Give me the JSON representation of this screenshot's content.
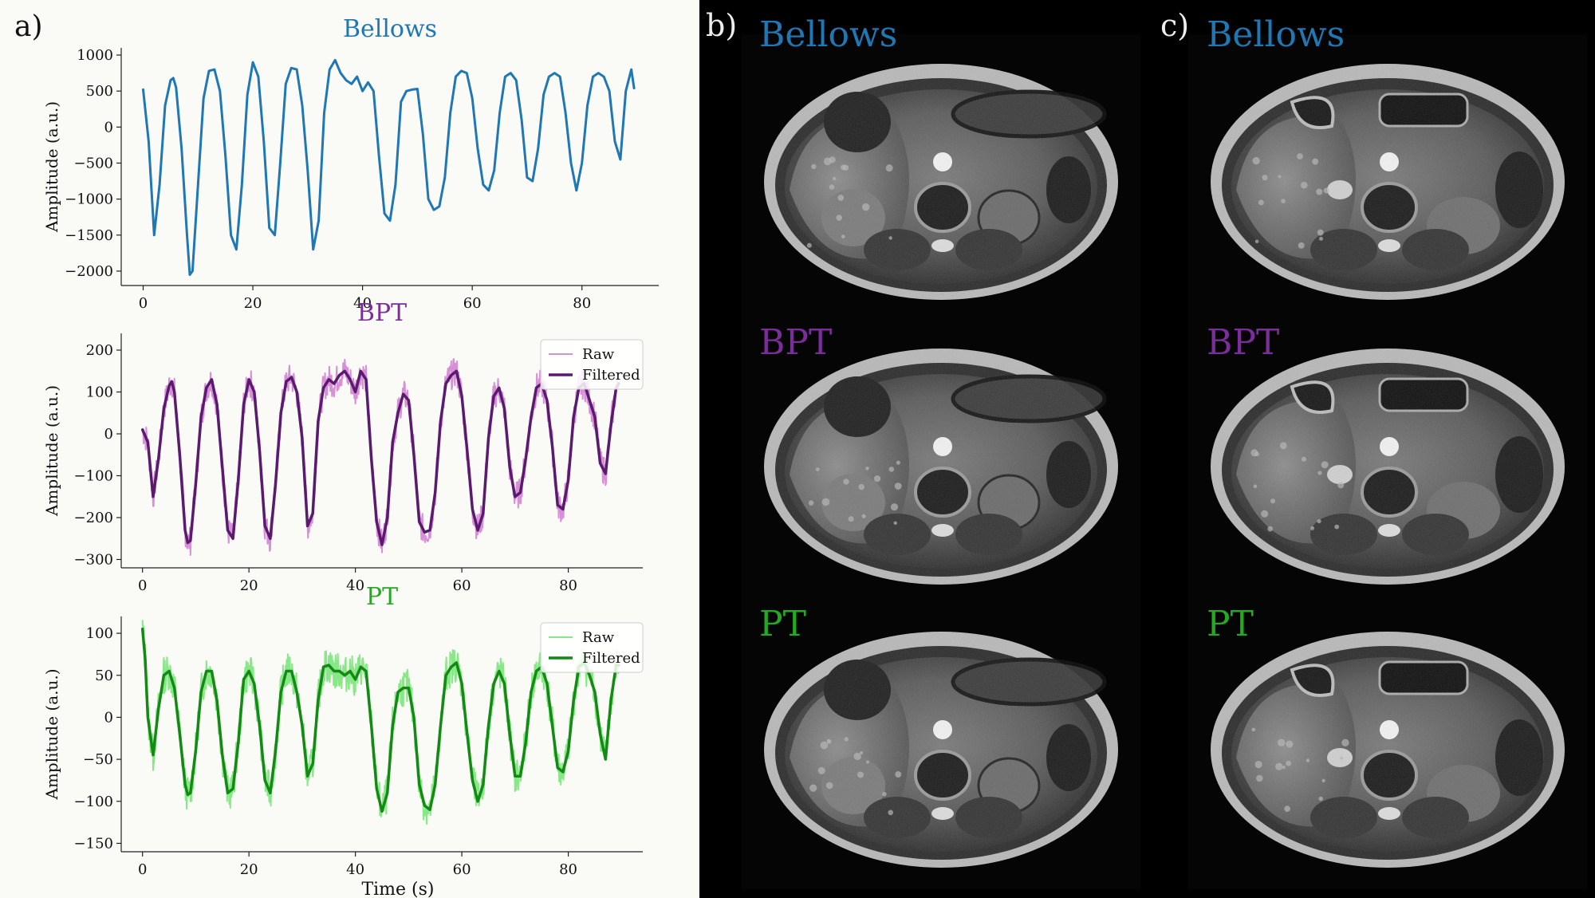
{
  "panel_labels": {
    "a": "a)",
    "b": "b)",
    "c": "c)"
  },
  "colors": {
    "bellows": "#1f77b4",
    "bpt_raw": "#d88fd8",
    "bpt_filtered": "#5a1a6e",
    "bpt_title": "#7b2d9b",
    "pt_raw": "#88e888",
    "pt_filtered": "#138a13",
    "pt_title": "#22aa22",
    "image_bg": "#000000"
  },
  "chart_data": [
    {
      "type": "line",
      "title": "Bellows",
      "xlabel": "",
      "ylabel": "Amplitude (a.u.)",
      "xlim": [
        -4,
        94
      ],
      "ylim": [
        -2200,
        1100
      ],
      "xticks": [
        0,
        20,
        40,
        60,
        80
      ],
      "xtick_labels": [
        "0",
        "20",
        "40",
        "60",
        "80"
      ],
      "yticks": [
        1000,
        500,
        0,
        -500,
        -1000,
        -1500,
        -2000
      ],
      "ytick_labels": [
        "1000",
        "500",
        "0",
        "−500",
        "−1000",
        "−1500",
        "−2000"
      ],
      "legend": null,
      "series": [
        {
          "name": "Bellows",
          "color_key": "bellows",
          "width": 3,
          "x": [
            0,
            1,
            2,
            3,
            4,
            5,
            5.5,
            6,
            7,
            8,
            8.5,
            9,
            10,
            11,
            12,
            13,
            14,
            15,
            16,
            17,
            18,
            19,
            20,
            21,
            22,
            23,
            24,
            25,
            26,
            27,
            28,
            29,
            30,
            31,
            32,
            33,
            34,
            35,
            36,
            37,
            38,
            39,
            40,
            41,
            42,
            43,
            44,
            45,
            46,
            47,
            48,
            49,
            50,
            51,
            52,
            53,
            54,
            55,
            56,
            57,
            58,
            59,
            60,
            61,
            62,
            63,
            64,
            65,
            66,
            67,
            68,
            69,
            70,
            71,
            72,
            73,
            74,
            75,
            76,
            77,
            78,
            79,
            80,
            81,
            82,
            83,
            84,
            85,
            86,
            87,
            88,
            89,
            89.5
          ],
          "y": [
            520,
            -200,
            -1500,
            -800,
            300,
            650,
            680,
            550,
            -300,
            -1500,
            -2050,
            -2000,
            -800,
            400,
            780,
            800,
            500,
            -400,
            -1500,
            -1700,
            -800,
            450,
            900,
            700,
            -200,
            -1400,
            -1500,
            -500,
            600,
            820,
            800,
            300,
            -600,
            -1700,
            -1300,
            200,
            800,
            930,
            750,
            650,
            600,
            700,
            500,
            620,
            500,
            -400,
            -1200,
            -1300,
            -800,
            350,
            500,
            520,
            530,
            -100,
            -1000,
            -1150,
            -1100,
            -700,
            200,
            700,
            780,
            750,
            400,
            -300,
            -800,
            -880,
            -600,
            200,
            700,
            750,
            650,
            100,
            -700,
            -750,
            -300,
            450,
            700,
            750,
            700,
            200,
            -500,
            -880,
            -500,
            300,
            700,
            750,
            700,
            500,
            -200,
            -450,
            500,
            800,
            540
          ]
        }
      ]
    },
    {
      "type": "line",
      "title": "BPT",
      "xlabel": "",
      "ylabel": "Amplitude (a.u.)",
      "xlim": [
        -4,
        94
      ],
      "ylim": [
        -320,
        240
      ],
      "xticks": [
        0,
        20,
        40,
        60,
        80
      ],
      "xtick_labels": [
        "0",
        "20",
        "40",
        "60",
        "80"
      ],
      "yticks": [
        200,
        100,
        0,
        -100,
        -200,
        -300
      ],
      "ytick_labels": [
        "200",
        "100",
        "0",
        "−100",
        "−200",
        "−300"
      ],
      "legend": {
        "position": "top-right",
        "entries": [
          "Raw",
          "Filtered"
        ]
      },
      "series": [
        {
          "name": "Raw",
          "color_key": "bpt_raw",
          "width": 2,
          "noise": 35,
          "noise_seed": 7,
          "x": [
            0,
            1,
            2,
            3,
            4,
            5,
            5.5,
            6,
            7,
            8,
            8.5,
            9,
            10,
            11,
            12,
            13,
            14,
            15,
            16,
            17,
            18,
            19,
            20,
            21,
            22,
            23,
            24,
            25,
            26,
            27,
            28,
            29,
            30,
            31,
            32,
            33,
            34,
            35,
            36,
            37,
            38,
            39,
            40,
            41,
            42,
            43,
            44,
            45,
            46,
            47,
            48,
            49,
            50,
            51,
            52,
            53,
            54,
            55,
            56,
            57,
            58,
            59,
            60,
            61,
            62,
            63,
            64,
            65,
            66,
            67,
            68,
            69,
            70,
            71,
            72,
            73,
            74,
            75,
            76,
            77,
            78,
            79,
            80,
            81,
            82,
            83,
            84,
            85,
            86,
            87,
            88,
            89,
            89.5
          ],
          "y": [
            10,
            -20,
            -150,
            -60,
            60,
            115,
            125,
            100,
            -50,
            -230,
            -260,
            -255,
            -120,
            40,
            110,
            130,
            70,
            -80,
            -230,
            -250,
            -110,
            70,
            130,
            100,
            -40,
            -220,
            -250,
            -120,
            50,
            125,
            135,
            100,
            -10,
            -220,
            -190,
            30,
            110,
            130,
            120,
            140,
            150,
            130,
            100,
            150,
            130,
            -60,
            -210,
            -265,
            -200,
            -20,
            50,
            95,
            80,
            -50,
            -210,
            -235,
            -230,
            -140,
            30,
            120,
            140,
            150,
            90,
            -40,
            -180,
            -230,
            -190,
            -10,
            90,
            110,
            60,
            -80,
            -150,
            -140,
            -60,
            40,
            110,
            120,
            80,
            -30,
            -170,
            -180,
            -110,
            40,
            110,
            120,
            80,
            40,
            -70,
            -95,
            20,
            110,
            120
          ]
        },
        {
          "name": "Filtered",
          "color_key": "bpt_filtered",
          "width": 3.5,
          "noise": 0,
          "x": [
            0,
            1,
            2,
            3,
            4,
            5,
            5.5,
            6,
            7,
            8,
            8.5,
            9,
            10,
            11,
            12,
            13,
            14,
            15,
            16,
            17,
            18,
            19,
            20,
            21,
            22,
            23,
            24,
            25,
            26,
            27,
            28,
            29,
            30,
            31,
            32,
            33,
            34,
            35,
            36,
            37,
            38,
            39,
            40,
            41,
            42,
            43,
            44,
            45,
            46,
            47,
            48,
            49,
            50,
            51,
            52,
            53,
            54,
            55,
            56,
            57,
            58,
            59,
            60,
            61,
            62,
            63,
            64,
            65,
            66,
            67,
            68,
            69,
            70,
            71,
            72,
            73,
            74,
            75,
            76,
            77,
            78,
            79,
            80,
            81,
            82,
            83,
            84,
            85,
            86,
            87,
            88,
            89,
            89.5
          ],
          "y": [
            10,
            -20,
            -150,
            -60,
            60,
            115,
            125,
            100,
            -50,
            -230,
            -260,
            -255,
            -120,
            40,
            110,
            130,
            70,
            -80,
            -230,
            -250,
            -110,
            70,
            130,
            100,
            -40,
            -220,
            -250,
            -120,
            50,
            125,
            135,
            100,
            -10,
            -220,
            -190,
            30,
            110,
            130,
            120,
            140,
            150,
            130,
            100,
            150,
            130,
            -60,
            -210,
            -265,
            -200,
            -20,
            50,
            95,
            80,
            -50,
            -210,
            -235,
            -230,
            -140,
            30,
            120,
            140,
            150,
            90,
            -40,
            -180,
            -230,
            -190,
            -10,
            90,
            110,
            60,
            -80,
            -150,
            -140,
            -60,
            40,
            110,
            120,
            80,
            -30,
            -170,
            -180,
            -110,
            40,
            110,
            120,
            80,
            40,
            -70,
            -95,
            20,
            110,
            120
          ]
        }
      ]
    },
    {
      "type": "line",
      "title": "PT",
      "xlabel": "Time (s)",
      "ylabel": "Amplitude (a.u.)",
      "xlim": [
        -4,
        94
      ],
      "ylim": [
        -160,
        120
      ],
      "xticks": [
        0,
        20,
        40,
        60,
        80
      ],
      "xtick_labels": [
        "0",
        "20",
        "40",
        "60",
        "80"
      ],
      "yticks": [
        100,
        50,
        0,
        -50,
        -100,
        -150
      ],
      "ytick_labels": [
        "100",
        "50",
        "0",
        "−50",
        "−100",
        "−150"
      ],
      "legend": {
        "position": "top-right",
        "entries": [
          "Raw",
          "Filtered"
        ]
      },
      "series": [
        {
          "name": "Raw",
          "color_key": "pt_raw",
          "width": 2,
          "noise": 22,
          "noise_seed": 13,
          "x": [
            0,
            0.5,
            1,
            2,
            3,
            4,
            5,
            6,
            7,
            8,
            8.5,
            9,
            10,
            11,
            12,
            13,
            14,
            15,
            16,
            17,
            18,
            19,
            20,
            21,
            22,
            23,
            24,
            25,
            26,
            27,
            28,
            29,
            30,
            31,
            32,
            33,
            34,
            35,
            36,
            37,
            38,
            39,
            40,
            41,
            42,
            43,
            44,
            45,
            46,
            47,
            48,
            49,
            50,
            51,
            52,
            53,
            54,
            55,
            56,
            57,
            58,
            59,
            60,
            61,
            62,
            63,
            64,
            65,
            66,
            67,
            68,
            69,
            70,
            71,
            72,
            73,
            74,
            75,
            76,
            77,
            78,
            79,
            80,
            81,
            82,
            83,
            84,
            85,
            86,
            87,
            88,
            89,
            89.5
          ],
          "y": [
            105,
            70,
            0,
            -45,
            10,
            50,
            55,
            35,
            -20,
            -80,
            -92,
            -90,
            -40,
            30,
            55,
            55,
            20,
            -45,
            -90,
            -85,
            -30,
            45,
            55,
            40,
            -10,
            -75,
            -90,
            -40,
            30,
            55,
            55,
            30,
            -10,
            -70,
            -55,
            20,
            60,
            62,
            55,
            55,
            50,
            55,
            45,
            60,
            55,
            -10,
            -85,
            -112,
            -90,
            -10,
            30,
            35,
            35,
            0,
            -80,
            -105,
            -110,
            -80,
            -10,
            50,
            60,
            65,
            40,
            -20,
            -75,
            -100,
            -80,
            -10,
            40,
            55,
            40,
            -20,
            -70,
            -70,
            -30,
            30,
            55,
            60,
            40,
            -10,
            -60,
            -65,
            -40,
            20,
            60,
            65,
            50,
            30,
            -20,
            -50,
            20,
            62,
            62
          ]
        },
        {
          "name": "Filtered",
          "color_key": "pt_filtered",
          "width": 3.5,
          "noise": 0,
          "x": [
            0,
            0.5,
            1,
            2,
            3,
            4,
            5,
            6,
            7,
            8,
            8.5,
            9,
            10,
            11,
            12,
            13,
            14,
            15,
            16,
            17,
            18,
            19,
            20,
            21,
            22,
            23,
            24,
            25,
            26,
            27,
            28,
            29,
            30,
            31,
            32,
            33,
            34,
            35,
            36,
            37,
            38,
            39,
            40,
            41,
            42,
            43,
            44,
            45,
            46,
            47,
            48,
            49,
            50,
            51,
            52,
            53,
            54,
            55,
            56,
            57,
            58,
            59,
            60,
            61,
            62,
            63,
            64,
            65,
            66,
            67,
            68,
            69,
            70,
            71,
            72,
            73,
            74,
            75,
            76,
            77,
            78,
            79,
            80,
            81,
            82,
            83,
            84,
            85,
            86,
            87,
            88,
            89,
            89.5
          ],
          "y": [
            105,
            70,
            0,
            -45,
            10,
            50,
            55,
            35,
            -20,
            -80,
            -92,
            -90,
            -40,
            30,
            55,
            55,
            20,
            -45,
            -90,
            -85,
            -30,
            45,
            55,
            40,
            -10,
            -75,
            -90,
            -40,
            30,
            55,
            55,
            30,
            -10,
            -70,
            -55,
            20,
            60,
            62,
            55,
            55,
            50,
            55,
            45,
            60,
            55,
            -10,
            -85,
            -112,
            -90,
            -10,
            30,
            35,
            35,
            0,
            -80,
            -105,
            -110,
            -80,
            -10,
            50,
            60,
            65,
            40,
            -20,
            -75,
            -100,
            -80,
            -10,
            40,
            55,
            40,
            -20,
            -70,
            -70,
            -30,
            30,
            55,
            60,
            40,
            -10,
            -60,
            -65,
            -40,
            20,
            60,
            65,
            50,
            30,
            -20,
            -50,
            20,
            62,
            62
          ]
        }
      ]
    }
  ],
  "image_panels": {
    "b": {
      "labels": [
        "Bellows",
        "BPT",
        "PT"
      ],
      "title_color_keys": [
        "bellows",
        "bpt_title",
        "pt_title"
      ],
      "variant": "liver"
    },
    "c": {
      "labels": [
        "Bellows",
        "BPT",
        "PT"
      ],
      "title_color_keys": [
        "bellows",
        "bpt_title",
        "pt_title"
      ],
      "variant": "kidney"
    }
  }
}
